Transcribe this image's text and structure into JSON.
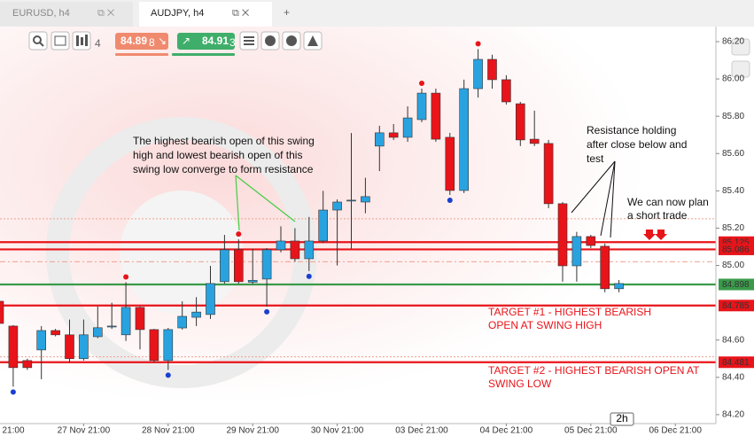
{
  "tabs": [
    "EURUSD, h4",
    "AUDJPY, h4"
  ],
  "toolbar": {
    "timeframe": "4",
    "sell_price": "84.89",
    "sell_pip": "8",
    "buy_price": "84.91",
    "buy_pip": "3"
  },
  "axis_badge": "2h",
  "chart_data": {
    "type": "candlestick",
    "categories": [
      "21:00",
      null,
      null,
      null,
      null,
      null,
      "27 Nov 21:00",
      null,
      null,
      null,
      null,
      null,
      "28 Nov 21:00",
      null,
      null,
      null,
      null,
      null,
      "29 Nov 21:00",
      null,
      null,
      null,
      null,
      null,
      "30 Nov 21:00",
      null,
      null,
      null,
      null,
      null,
      "03 Dec 21:00",
      null,
      null,
      null,
      null,
      null,
      "04 Dec 21:00",
      null,
      null,
      null,
      null,
      null,
      "05 Dec 21:00",
      null,
      null,
      null,
      null,
      null,
      "06 Dec 21:00"
    ],
    "open": [
      84.808,
      84.675,
      84.49,
      84.547,
      84.651,
      84.628,
      84.5,
      84.618,
      84.67,
      84.628,
      84.775,
      84.656,
      84.49,
      84.665,
      84.722,
      84.737,
      84.913,
      85.084,
      84.91,
      84.927,
      85.084,
      85.131,
      85.036,
      85.131,
      85.297,
      85.35,
      85.34,
      85.64,
      85.711,
      85.687,
      85.782,
      85.924,
      85.687,
      85.402,
      85.948,
      86.105,
      85.996,
      85.867,
      85.677,
      85.654,
      85.331,
      84.998,
      85.155,
      85.103,
      84.875,
      null,
      null,
      null,
      null
    ],
    "high": [
      84.82,
      84.68,
      84.5,
      84.675,
      84.66,
      84.71,
      84.71,
      84.78,
      84.8,
      84.91,
      84.78,
      84.66,
      84.665,
      84.808,
      84.83,
      84.998,
      85.164,
      85.14,
      85.09,
      85.093,
      85.21,
      85.2,
      85.26,
      85.4,
      85.354,
      85.71,
      85.47,
      85.749,
      85.758,
      85.853,
      85.948,
      85.948,
      85.711,
      85.996,
      86.16,
      86.13,
      86.02,
      85.877,
      85.83,
      85.673,
      85.34,
      85.18,
      85.164,
      85.117,
      84.922,
      null,
      null,
      null,
      null
    ],
    "low": [
      84.68,
      84.35,
      84.44,
      84.39,
      84.62,
      84.48,
      84.49,
      84.61,
      84.66,
      84.595,
      84.55,
      84.48,
      84.44,
      84.656,
      84.675,
      84.713,
      84.903,
      84.903,
      84.9,
      84.78,
      85.07,
      85.02,
      84.97,
      85.12,
      85.0,
      85.09,
      85.28,
      85.506,
      85.673,
      85.663,
      85.768,
      85.663,
      85.378,
      85.388,
      85.9,
      85.948,
      85.863,
      85.64,
      85.64,
      85.307,
      84.913,
      84.913,
      85.093,
      84.856,
      84.856,
      null,
      null,
      null,
      null
    ],
    "close": [
      84.689,
      84.452,
      84.452,
      84.651,
      84.628,
      84.5,
      84.628,
      84.666,
      84.675,
      84.775,
      84.656,
      84.49,
      84.656,
      84.727,
      84.75,
      84.903,
      85.084,
      84.913,
      84.92,
      85.084,
      85.131,
      85.036,
      85.131,
      85.297,
      85.34,
      85.35,
      85.369,
      85.711,
      85.687,
      85.791,
      85.924,
      85.677,
      85.402,
      85.948,
      86.105,
      85.996,
      85.877,
      85.673,
      85.654,
      85.331,
      84.998,
      85.155,
      85.107,
      84.875,
      84.903,
      null,
      null,
      null,
      null
    ],
    "up_color": "#29a3e0",
    "down_color": "#e8141a",
    "swing_high_markers": [
      9,
      17,
      30,
      34
    ],
    "swing_low_markers": [
      1,
      12,
      19,
      22,
      32
    ],
    "ylim": [
      84.152,
      86.257
    ],
    "yticks": [
      {
        "value": 84.2,
        "label": "84.20"
      },
      {
        "value": 84.4,
        "label": "84.40"
      },
      {
        "value": 84.6,
        "label": "84.60"
      },
      {
        "value": 85.0,
        "label": "85.00"
      },
      {
        "value": 85.2,
        "label": "85.20"
      },
      {
        "value": 85.4,
        "label": "85.40"
      },
      {
        "value": 85.6,
        "label": "85.60"
      },
      {
        "value": 85.8,
        "label": "85.80"
      },
      {
        "value": 86.0,
        "label": "86.00"
      },
      {
        "value": 86.2,
        "label": "86.20"
      }
    ],
    "guide_levels": [
      85.25,
      85.02,
      84.51
    ],
    "levels": [
      {
        "value": 85.125,
        "label": "85.125",
        "color": "#e8141a"
      },
      {
        "value": 85.086,
        "label": "85.086",
        "color": "#e8141a"
      },
      {
        "value": 84.898,
        "label": "84.898",
        "color": "#3a9a4a"
      },
      {
        "value": 84.785,
        "label": "84.785",
        "color": "#e8141a"
      },
      {
        "value": 84.481,
        "label": "84.481",
        "color": "#e8141a"
      }
    ],
    "annotations": [
      {
        "lines": [
          "The highest bearish open of this swing",
          "high and lowest bearish open of  this",
          "swing low converge to form resistance"
        ],
        "color": "#111111"
      },
      {
        "lines": [
          "Resistance holding",
          "after close below and",
          "test"
        ],
        "color": "#111111"
      },
      {
        "lines": [
          "We can now plan",
          "a short trade"
        ],
        "color": "#111111"
      },
      {
        "lines": [
          "TARGET #1 - HIGHEST BEARISH",
          "OPEN AT SWING HIGH"
        ],
        "color": "#e8141a"
      },
      {
        "lines": [
          "TARGET #2 - HIGHEST BEARISH OPEN AT",
          "SWING LOW"
        ],
        "color": "#e8141a"
      }
    ]
  }
}
